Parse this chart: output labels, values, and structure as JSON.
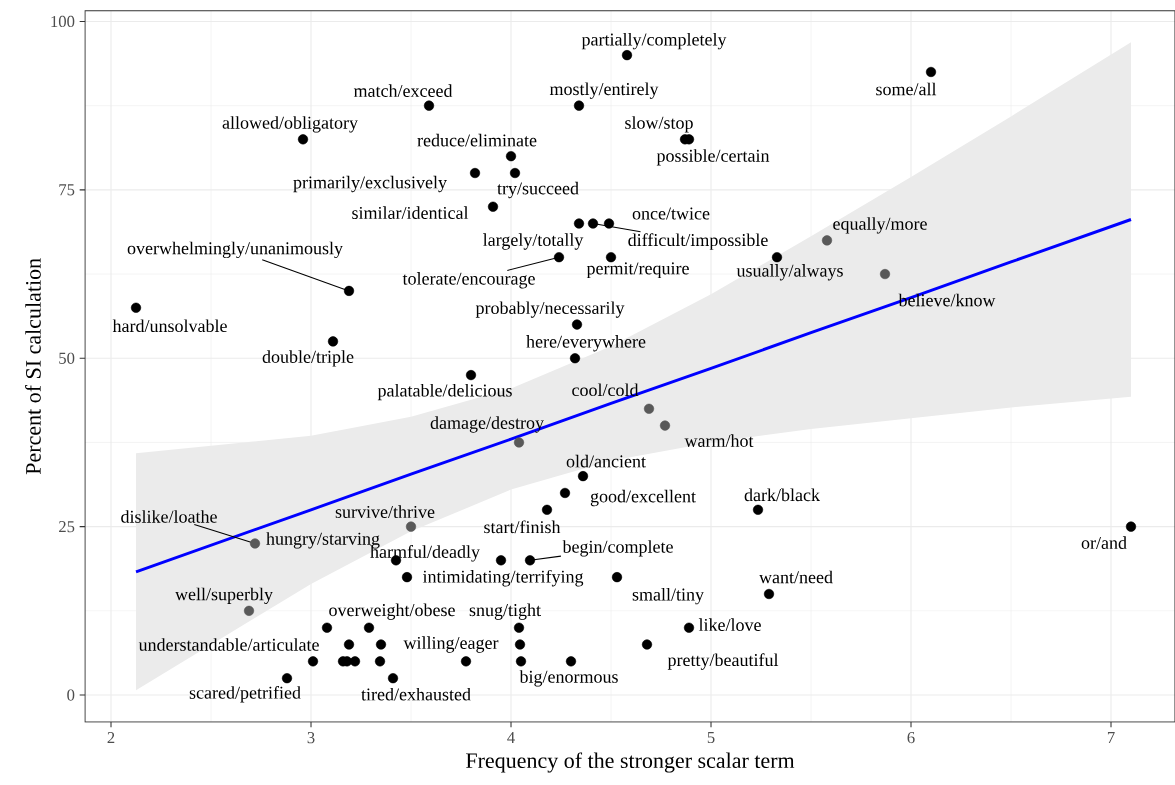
{
  "chart_data": {
    "type": "scatter",
    "xlabel": "Frequency of the stronger scalar term",
    "ylabel": "Percent of SI calculation",
    "xlim": [
      1.87,
      7.32
    ],
    "ylim": [
      -4,
      101.6
    ],
    "xticks": [
      2,
      3,
      4,
      5,
      6,
      7
    ],
    "yticks": [
      0,
      25,
      50,
      75,
      100
    ],
    "grid": true,
    "series": [
      {
        "type": "line",
        "color": "#0000ff",
        "x": [
          2.125,
          3.0,
          3.5,
          4.0,
          4.5,
          5.0,
          5.5,
          6.0,
          6.5,
          7.1
        ],
        "values": [
          18.3,
          27.5,
          32.8,
          38.0,
          43.3,
          48.5,
          53.8,
          59.0,
          64.3,
          70.6
        ],
        "lower": [
          0.7,
          16.5,
          24.3,
          30.5,
          34.8,
          37.5,
          39.5,
          41.1,
          42.7,
          44.3
        ],
        "upper": [
          35.9,
          38.5,
          41.3,
          45.5,
          51.8,
          59.5,
          68.1,
          76.9,
          85.9,
          96.9
        ]
      },
      {
        "color": "#000000",
        "x": [
          4.58,
          4.34,
          3.59,
          6.1,
          2.96,
          4.87,
          4.89,
          4.0,
          3.82,
          4.02,
          3.91,
          4.49,
          4.34,
          4.41,
          3.19,
          4.24,
          4.5,
          5.33,
          2.125,
          3.11,
          4.33,
          4.32,
          3.8,
          4.36,
          4.27,
          4.18,
          5.235,
          7.1,
          3.425,
          3.95,
          4.095,
          3.48,
          4.53,
          5.29,
          3.29,
          4.04,
          4.89,
          3.19,
          3.35,
          4.68,
          2.88,
          3.41,
          4.3,
          3.08,
          4.045,
          3.01,
          3.16,
          3.18,
          3.22,
          3.345,
          3.775,
          4.05
        ],
        "values": [
          95,
          87.5,
          87.5,
          92.5,
          82.5,
          82.5,
          82.5,
          80,
          77.5,
          77.5,
          72.5,
          70,
          70,
          70,
          60,
          65,
          65,
          65,
          57.5,
          52.5,
          55,
          50,
          47.5,
          32.5,
          30,
          27.5,
          27.5,
          25,
          20,
          20,
          20,
          17.5,
          17.5,
          15,
          10,
          10,
          10,
          7.5,
          7.5,
          7.5,
          2.5,
          2.5,
          5,
          10,
          7.5,
          5,
          5,
          5,
          5,
          5,
          5,
          5
        ]
      },
      {
        "color": "#595959",
        "x": [
          5.58,
          5.87,
          4.69,
          4.77,
          4.04,
          3.5,
          2.72,
          2.69
        ],
        "values": [
          67.5,
          62.5,
          42.5,
          40,
          37.5,
          25,
          22.5,
          12.5
        ]
      }
    ],
    "annotations": [
      {
        "text": "partially/completely",
        "x": 4.58,
        "y": 95
      },
      {
        "text": "mostly/entirely",
        "x": 4.34,
        "y": 87.5
      },
      {
        "text": "match/exceed",
        "x": 3.59,
        "y": 87.5
      },
      {
        "text": "some/all",
        "x": 6.1,
        "y": 92.5
      },
      {
        "text": "allowed/obligatory",
        "x": 2.96,
        "y": 82.5
      },
      {
        "text": "slow/stop",
        "x": 4.87,
        "y": 82.5
      },
      {
        "text": "possible/certain",
        "x": 4.89,
        "y": 82.5
      },
      {
        "text": "reduce/eliminate",
        "x": 4.0,
        "y": 80
      },
      {
        "text": "primarily/exclusively",
        "x": 3.82,
        "y": 77.5
      },
      {
        "text": "try/succeed",
        "x": 4.02,
        "y": 77.5
      },
      {
        "text": "similar/identical",
        "x": 3.91,
        "y": 72.5
      },
      {
        "text": "once/twice",
        "x": 4.49,
        "y": 70
      },
      {
        "text": "largely/totally",
        "x": 4.34,
        "y": 70
      },
      {
        "text": "difficult/impossible",
        "x": 4.41,
        "y": 70
      },
      {
        "text": "overwhelmingly/unanimously",
        "x": 3.19,
        "y": 60
      },
      {
        "text": "tolerate/encourage",
        "x": 4.24,
        "y": 65
      },
      {
        "text": "permit/require",
        "x": 4.5,
        "y": 65
      },
      {
        "text": "usually/always",
        "x": 5.33,
        "y": 65
      },
      {
        "text": "equally/more",
        "x": 5.58,
        "y": 67.5
      },
      {
        "text": "believe/know",
        "x": 5.87,
        "y": 62.5
      },
      {
        "text": "hard/unsolvable",
        "x": 2.125,
        "y": 57.5
      },
      {
        "text": "double/triple",
        "x": 3.11,
        "y": 52.5
      },
      {
        "text": "probably/necessarily",
        "x": 4.33,
        "y": 55
      },
      {
        "text": "here/everywhere",
        "x": 4.32,
        "y": 50
      },
      {
        "text": "palatable/delicious",
        "x": 3.8,
        "y": 47.5
      },
      {
        "text": "cool/cold",
        "x": 4.69,
        "y": 42.5
      },
      {
        "text": "damage/destroy",
        "x": 4.04,
        "y": 37.5
      },
      {
        "text": "warm/hot",
        "x": 4.77,
        "y": 40
      },
      {
        "text": "old/ancient",
        "x": 4.36,
        "y": 32.5
      },
      {
        "text": "good/excellent",
        "x": 4.27,
        "y": 30
      },
      {
        "text": "start/finish",
        "x": 4.18,
        "y": 27.5
      },
      {
        "text": "dark/black",
        "x": 5.235,
        "y": 27.5
      },
      {
        "text": "or/and",
        "x": 7.1,
        "y": 25
      },
      {
        "text": "dislike/loathe",
        "x": 2.72,
        "y": 22.5
      },
      {
        "text": "survive/thrive",
        "x": 3.5,
        "y": 25
      },
      {
        "text": "hungry/starving",
        "x": 3.425,
        "y": 20
      },
      {
        "text": "harmful/deadly",
        "x": 3.95,
        "y": 20
      },
      {
        "text": "begin/complete",
        "x": 4.095,
        "y": 20
      },
      {
        "text": "intimidating/terrifying",
        "x": 3.48,
        "y": 17.5
      },
      {
        "text": "small/tiny",
        "x": 4.53,
        "y": 17.5
      },
      {
        "text": "want/need",
        "x": 5.29,
        "y": 15
      },
      {
        "text": "well/superbly",
        "x": 2.69,
        "y": 12.5
      },
      {
        "text": "overweight/obese",
        "x": 3.29,
        "y": 10
      },
      {
        "text": "snug/tight",
        "x": 4.04,
        "y": 10
      },
      {
        "text": "like/love",
        "x": 4.89,
        "y": 10
      },
      {
        "text": "understandable/articulate",
        "x": 3.19,
        "y": 7.5
      },
      {
        "text": "willing/eager",
        "x": 3.35,
        "y": 7.5
      },
      {
        "text": "pretty/beautiful",
        "x": 4.68,
        "y": 7.5
      },
      {
        "text": "scared/petrified",
        "x": 2.88,
        "y": 2.5
      },
      {
        "text": "tired/exhausted",
        "x": 3.41,
        "y": 2.5
      },
      {
        "text": "big/enormous",
        "x": 4.3,
        "y": 5
      }
    ]
  }
}
